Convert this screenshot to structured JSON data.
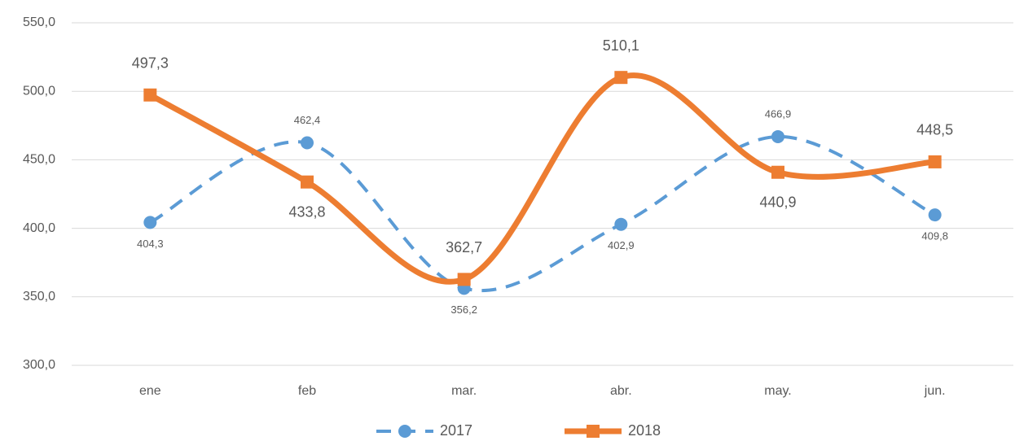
{
  "chart_data": {
    "type": "line",
    "categories": [
      "ene",
      "feb",
      "mar.",
      "abr.",
      "may.",
      "jun."
    ],
    "series": [
      {
        "name": "2017",
        "color": "#5b9bd5",
        "values": [
          404.3,
          462.4,
          356.2,
          402.9,
          466.9,
          409.8
        ],
        "value_labels": [
          "404,3",
          "462,4",
          "356,2",
          "402,9",
          "466,9",
          "409,8"
        ]
      },
      {
        "name": "2018",
        "color": "#ed7d31",
        "values": [
          497.3,
          433.8,
          362.7,
          510.1,
          440.9,
          448.5
        ],
        "value_labels": [
          "497,3",
          "433,8",
          "362,7",
          "510,1",
          "440,9",
          "448,5"
        ]
      }
    ],
    "ylim": [
      300,
      550
    ],
    "yticks": [
      {
        "value": 300,
        "label": "300,0"
      },
      {
        "value": 350,
        "label": "350,0"
      },
      {
        "value": 400,
        "label": "400,0"
      },
      {
        "value": 450,
        "label": "450,0"
      },
      {
        "value": 500,
        "label": "500,0"
      },
      {
        "value": 550,
        "label": "550,0"
      }
    ],
    "grid": true,
    "smooth": true,
    "legend": "bottom"
  }
}
